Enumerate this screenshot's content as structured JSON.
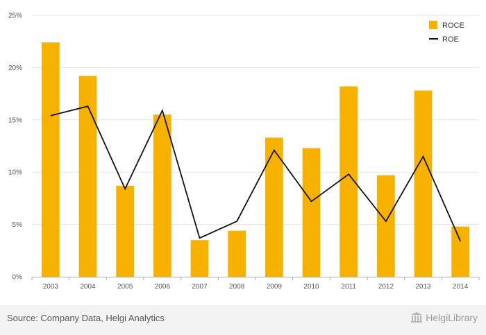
{
  "chart_data": {
    "type": "bar",
    "categories": [
      "2003",
      "2004",
      "2005",
      "2006",
      "2007",
      "2008",
      "2009",
      "2010",
      "2011",
      "2012",
      "2013",
      "2014"
    ],
    "series": [
      {
        "name": "ROCE",
        "type": "bar",
        "color": "#f7b200",
        "values": [
          22.4,
          19.2,
          8.7,
          15.5,
          3.5,
          4.4,
          13.3,
          12.3,
          18.2,
          9.7,
          17.8,
          4.8
        ]
      },
      {
        "name": "ROE",
        "type": "line",
        "color": "#111111",
        "values": [
          15.4,
          16.3,
          8.4,
          15.9,
          3.7,
          5.3,
          12.1,
          7.2,
          9.8,
          5.3,
          11.5,
          3.4
        ]
      }
    ],
    "yticks": [
      "0%",
      "5%",
      "10%",
      "15%",
      "20%",
      "25%"
    ],
    "ylim": [
      0,
      25
    ],
    "grid": true,
    "legend_position": "top-right"
  },
  "footer": {
    "source": "Source: Company Data, Helgi Analytics",
    "brand": "HelgiLibrary",
    "logo_icon": "library-building-icon"
  }
}
